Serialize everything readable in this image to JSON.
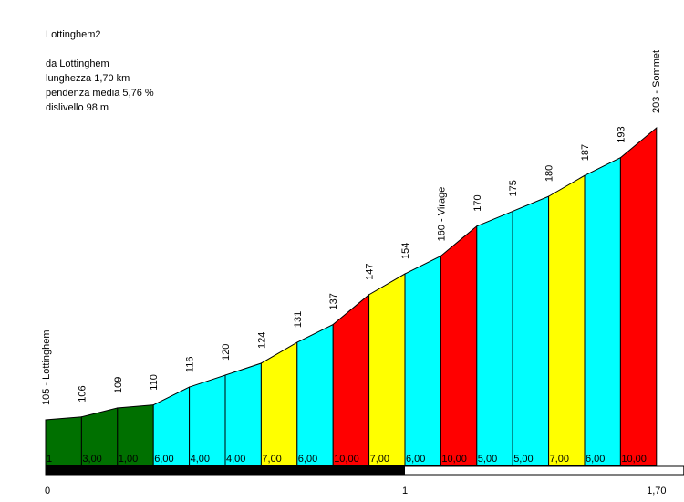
{
  "header": {
    "title": "Lottinghem2",
    "start": "da Lottinghem",
    "length": "lunghezza 1,70 km",
    "gradient": "pendenza media 5,76 %",
    "elevation_gain": "dislivello 98 m"
  },
  "chart_data": {
    "type": "area",
    "x": [
      0,
      0.1,
      0.2,
      0.3,
      0.4,
      0.5,
      0.6,
      0.7,
      0.8,
      0.9,
      1.0,
      1.1,
      1.2,
      1.3,
      1.4,
      1.5,
      1.6,
      1.7
    ],
    "elevations": [
      105,
      106,
      109,
      110,
      116,
      120,
      124,
      131,
      137,
      147,
      154,
      160,
      170,
      175,
      180,
      187,
      193,
      203
    ],
    "elevation_labels": [
      "105 - Lottinghem",
      "106",
      "109",
      "110",
      "116",
      "120",
      "124",
      "131",
      "137",
      "147",
      "154",
      "160 - Virage",
      "170",
      "175",
      "180",
      "187",
      "193",
      "203 - Sommet"
    ],
    "segment_gradients": [
      "1",
      "3,00",
      "1,00",
      "6,00",
      "4,00",
      "4,00",
      "7,00",
      "6,00",
      "10,00",
      "7,00",
      "6,00",
      "10,00",
      "5,00",
      "5,00",
      "7,00",
      "6,00",
      "10,00"
    ],
    "segment_colors": [
      "#007000",
      "#007000",
      "#007000",
      "#00ffff",
      "#00ffff",
      "#00ffff",
      "#ffff00",
      "#00ffff",
      "#ff0000",
      "#ffff00",
      "#00ffff",
      "#ff0000",
      "#00ffff",
      "#00ffff",
      "#ffff00",
      "#00ffff",
      "#ff0000"
    ],
    "x_ticks": [
      "0",
      "1",
      "1,70"
    ],
    "x_tick_values": [
      0,
      1,
      1.7
    ],
    "km_bar": {
      "black_until_km": 1.0
    },
    "grid": false
  }
}
